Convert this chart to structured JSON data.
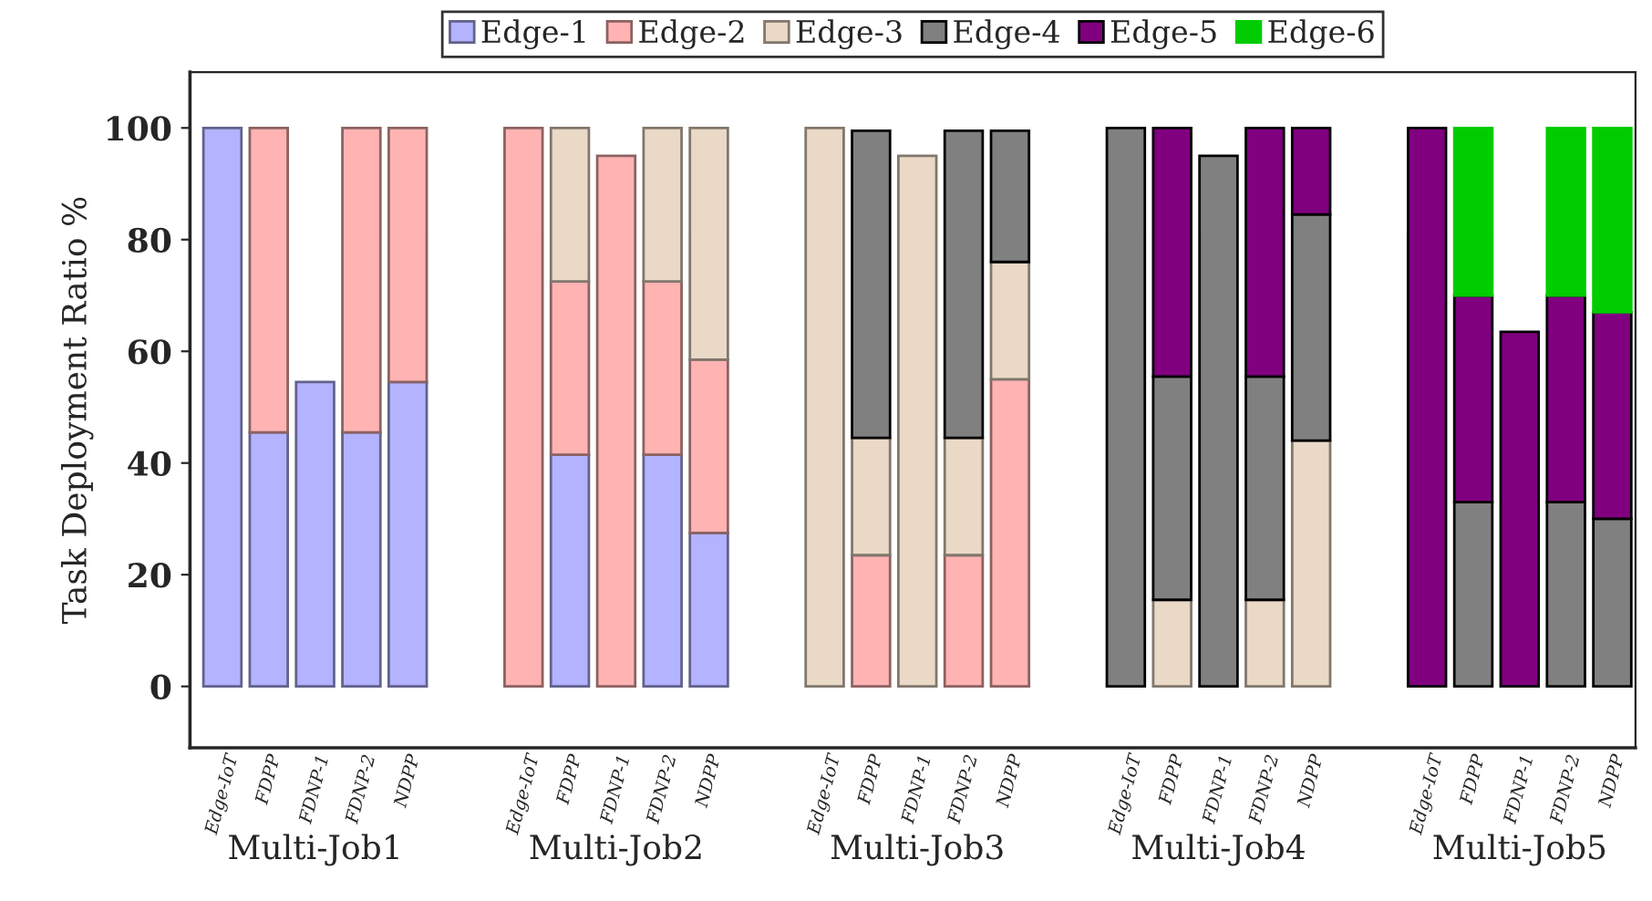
{
  "chart_data": {
    "type": "bar",
    "stacked": true,
    "ylabel": "Task Deployment Ratio %",
    "ylim": [
      -11,
      110
    ],
    "yticks": [
      0,
      20,
      40,
      60,
      80,
      100
    ],
    "grid": false,
    "legend": "top",
    "categories": [
      "Edge-IoT",
      "FDPP",
      "FDNP-1",
      "FDNP-2",
      "NDPP",
      "Edge-IoT",
      "FDPP",
      "FDNP-1",
      "FDNP-2",
      "NDPP",
      "Edge-IoT",
      "FDPP",
      "FDNP-1",
      "FDNP-2",
      "NDPP",
      "Edge-IoT",
      "FDPP",
      "FDNP-1",
      "FDNP-2",
      "NDPP",
      "Edge-IoT",
      "FDPP",
      "FDNP-1",
      "FDNP-2",
      "NDPP"
    ],
    "annotations": [
      "Multi-Job1",
      "Multi-Job2",
      "Multi-Job3",
      "Multi-Job4",
      "Multi-Job5"
    ],
    "series": [
      {
        "name": "Edge-1",
        "color": "#b3b3ff",
        "values": [
          100,
          45.5,
          54.5,
          45.5,
          54.5,
          null,
          41.5,
          null,
          41.5,
          27.5,
          null,
          null,
          null,
          null,
          null,
          null,
          null,
          null,
          null,
          null,
          null,
          null,
          null,
          null,
          null
        ]
      },
      {
        "name": "Edge-2",
        "color": "#ffb3b3",
        "values": [
          null,
          54.5,
          null,
          54.5,
          45.5,
          100,
          31,
          95,
          31,
          31,
          null,
          23.5,
          null,
          23.5,
          55,
          null,
          null,
          null,
          null,
          null,
          null,
          null,
          null,
          null,
          null
        ]
      },
      {
        "name": "Edge-3",
        "color": "#ead9c6",
        "values": [
          null,
          null,
          null,
          null,
          null,
          null,
          27.5,
          null,
          27.5,
          41.5,
          100,
          21,
          95,
          21,
          21,
          null,
          15.5,
          null,
          15.5,
          44,
          null,
          null,
          null,
          null,
          null
        ]
      },
      {
        "name": "Edge-4",
        "color": "#808080",
        "values": [
          null,
          null,
          null,
          null,
          null,
          null,
          null,
          null,
          null,
          null,
          null,
          55,
          null,
          55,
          23.5,
          100,
          40,
          95,
          40,
          40.5,
          null,
          33,
          null,
          33,
          30
        ]
      },
      {
        "name": "Edge-5",
        "color": "#800080",
        "values": [
          null,
          null,
          null,
          null,
          null,
          null,
          null,
          null,
          null,
          null,
          null,
          null,
          null,
          null,
          null,
          null,
          44.5,
          null,
          44.5,
          15.5,
          100,
          37,
          63.5,
          37,
          37
        ]
      },
      {
        "name": "Edge-6",
        "color": "#00cc00",
        "values": [
          null,
          null,
          null,
          null,
          null,
          null,
          null,
          null,
          null,
          null,
          null,
          null,
          null,
          null,
          null,
          null,
          null,
          null,
          null,
          null,
          null,
          30,
          null,
          30,
          33
        ]
      }
    ]
  }
}
